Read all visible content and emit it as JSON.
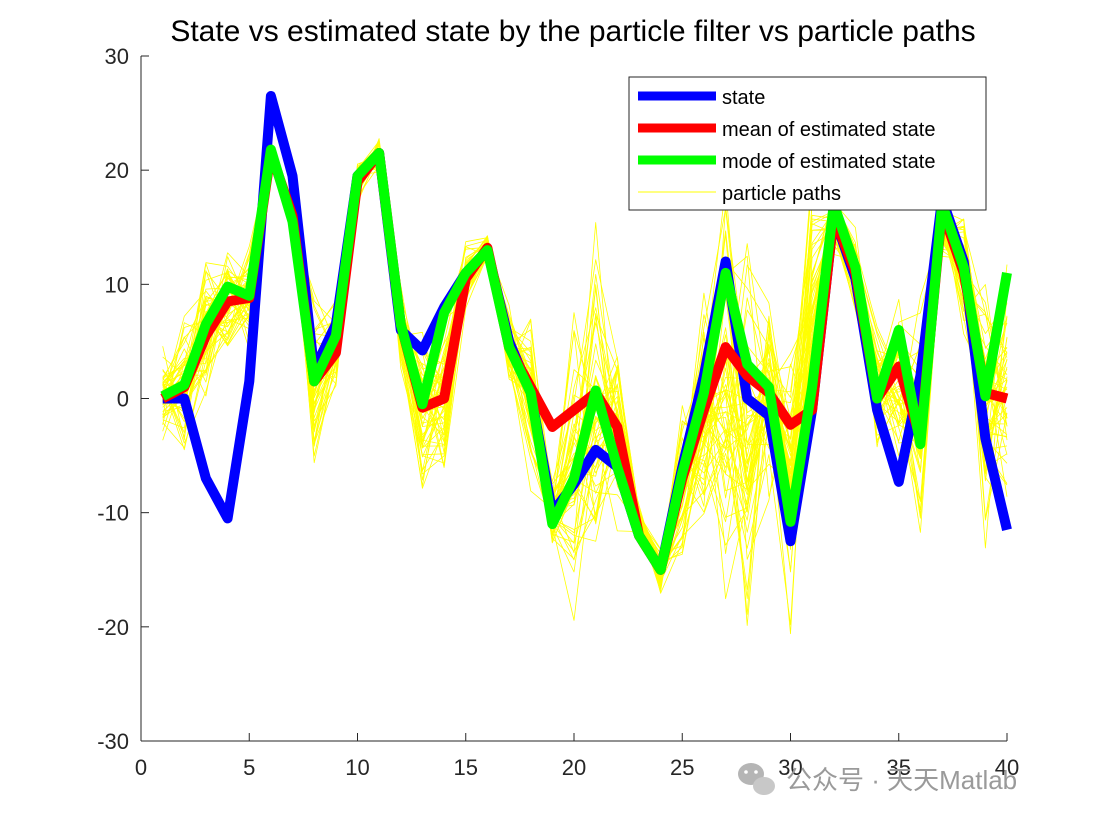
{
  "chart_data": {
    "type": "line",
    "title": "State vs estimated state by the particle filter vs particle paths",
    "xlabel": "",
    "ylabel": "",
    "xlim": [
      0,
      40
    ],
    "ylim": [
      -30,
      30
    ],
    "xticks": [
      0,
      5,
      10,
      15,
      20,
      25,
      30,
      35,
      40
    ],
    "yticks": [
      -30,
      -20,
      -10,
      0,
      10,
      20,
      30
    ],
    "x": [
      1,
      2,
      3,
      4,
      5,
      6,
      7,
      8,
      9,
      10,
      11,
      12,
      13,
      14,
      15,
      16,
      17,
      18,
      19,
      20,
      21,
      22,
      23,
      24,
      25,
      26,
      27,
      28,
      29,
      30,
      31,
      32,
      33,
      34,
      35,
      36,
      37,
      38,
      39,
      40
    ],
    "legend_position": "top-right",
    "series": [
      {
        "name": "particle paths",
        "color": "#ffff00",
        "center": [
          0.3,
          0.8,
          6.0,
          8.5,
          8.8,
          21.5,
          16.0,
          1.0,
          5.0,
          19.0,
          21.5,
          6.5,
          -1.0,
          0.0,
          11.0,
          13.2,
          4.5,
          0.0,
          -10.0,
          -6.0,
          -2.0,
          -2.5,
          -11.0,
          -15.0,
          -7.0,
          -1.0,
          0.0,
          -3.0,
          0.5,
          -7.0,
          8.0,
          15.5,
          11.0,
          1.0,
          3.0,
          -2.0,
          15.5,
          11.0,
          -1.0,
          1.0
        ],
        "spread": [
          3.5,
          5.0,
          4.5,
          4.0,
          4.0,
          1.0,
          1.5,
          6.0,
          3.5,
          1.5,
          1.2,
          3.0,
          7.0,
          6.0,
          2.5,
          1.2,
          3.5,
          6.0,
          2.5,
          10.0,
          13.0,
          6.0,
          1.5,
          1.5,
          6.0,
          9.0,
          13.0,
          14.0,
          7.0,
          10.0,
          9.0,
          2.5,
          3.0,
          4.5,
          7.0,
          8.5,
          2.5,
          4.0,
          9.0,
          9.0
        ],
        "count": 55
      },
      {
        "name": "state",
        "color": "#0000ff",
        "values": [
          0.0,
          0.0,
          -7.0,
          -10.5,
          1.5,
          26.5,
          19.5,
          2.5,
          6.5,
          19.5,
          21.5,
          6.0,
          4.2,
          8.0,
          11.0,
          13.0,
          5.0,
          0.5,
          -10.0,
          -7.5,
          -4.5,
          -6.0,
          -12.0,
          -15.0,
          -6.0,
          2.0,
          12.0,
          0.0,
          -1.5,
          -12.5,
          -1.0,
          16.0,
          10.5,
          -1.0,
          -7.3,
          2.0,
          17.5,
          12.0,
          -3.5,
          -11.5
        ]
      },
      {
        "name": "mean of estimated state",
        "color": "#ff0000",
        "values": [
          0.0,
          1.0,
          5.5,
          8.5,
          8.8,
          21.5,
          16.0,
          1.5,
          4.0,
          19.0,
          21.5,
          6.5,
          -0.8,
          0.0,
          10.5,
          13.2,
          4.5,
          1.0,
          -2.5,
          -1.0,
          0.5,
          -2.5,
          -12.0,
          -15.0,
          -7.0,
          -1.0,
          4.5,
          2.0,
          0.5,
          -2.3,
          -1.0,
          16.0,
          11.0,
          0.0,
          2.8,
          -3.5,
          16.5,
          11.0,
          0.5,
          0.0
        ]
      },
      {
        "name": "mode of estimated state",
        "color": "#00ff00",
        "values": [
          0.2,
          1.2,
          6.5,
          9.8,
          9.0,
          21.8,
          15.5,
          1.5,
          5.5,
          19.5,
          21.5,
          6.5,
          -0.5,
          7.5,
          11.0,
          13.0,
          4.5,
          0.5,
          -11.0,
          -7.0,
          0.7,
          -6.0,
          -12.0,
          -15.0,
          -6.5,
          0.5,
          11.0,
          3.0,
          1.0,
          -10.8,
          1.0,
          17.0,
          11.5,
          0.0,
          6.0,
          -4.0,
          17.0,
          11.5,
          0.2,
          11.0
        ]
      }
    ]
  },
  "watermark": {
    "text": "公众号 · 天天Matlab",
    "icon": "wechat-icon"
  }
}
